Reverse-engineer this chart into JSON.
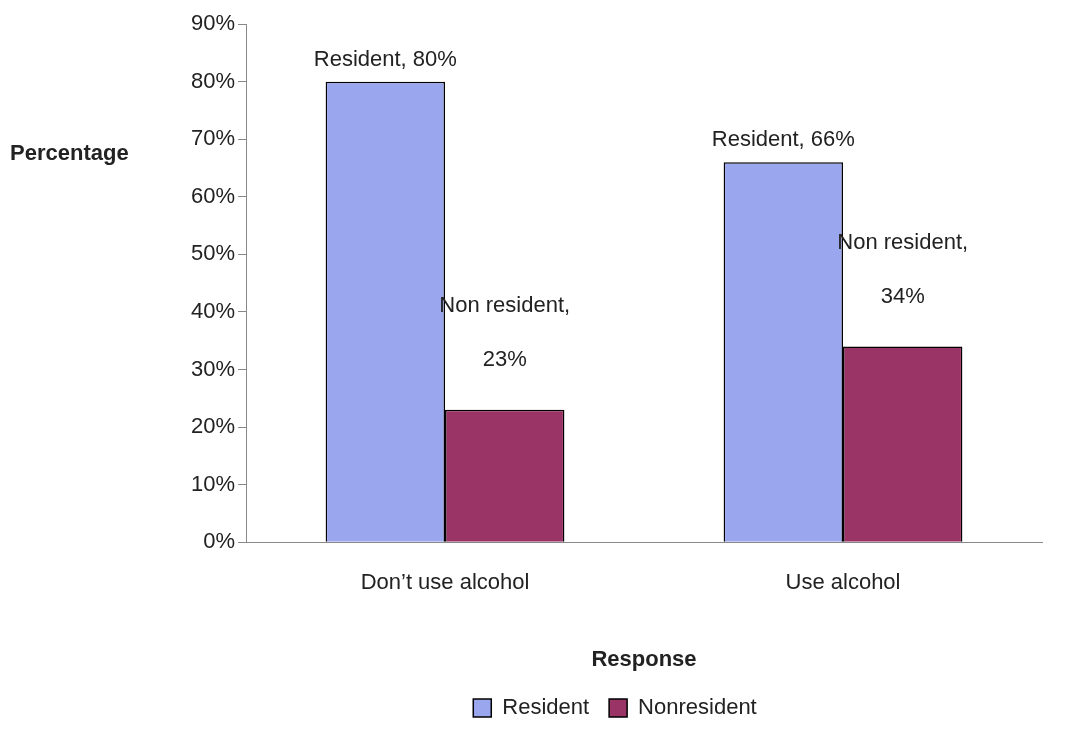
{
  "chart_data": {
    "type": "bar",
    "xlabel": "Response",
    "ylabel": "Percentage",
    "categories": [
      "Don’t use alcohol",
      "Use alcohol"
    ],
    "series": [
      {
        "name": "Resident",
        "color": "#9aa6ee",
        "values": [
          80,
          66
        ],
        "value_labels": [
          "Resident, 80%",
          "Resident, 66%"
        ]
      },
      {
        "name": "Nonresident",
        "color": "#9b3466",
        "values": [
          23,
          34
        ],
        "value_labels": [
          "Non resident, 23%",
          "Non resident, 34%"
        ]
      }
    ],
    "ylim": [
      0,
      90
    ],
    "yticks": [
      {
        "value": 0,
        "label": "0%"
      },
      {
        "value": 10,
        "label": "10%"
      },
      {
        "value": 20,
        "label": "20%"
      },
      {
        "value": 30,
        "label": "30%"
      },
      {
        "value": 40,
        "label": "40%"
      },
      {
        "value": 50,
        "label": "50%"
      },
      {
        "value": 60,
        "label": "60%"
      },
      {
        "value": 70,
        "label": "70%"
      },
      {
        "value": 80,
        "label": "80%"
      },
      {
        "value": 90,
        "label": "90%"
      }
    ],
    "grid": false,
    "legend": "bottom"
  }
}
